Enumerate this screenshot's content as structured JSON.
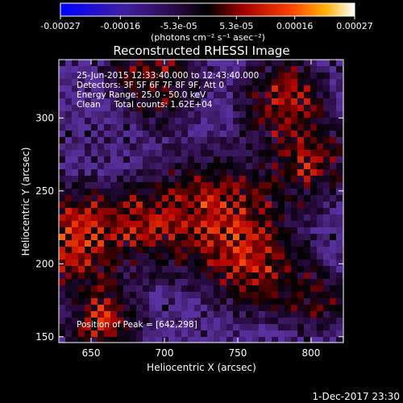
{
  "chart_data": {
    "type": "heatmap",
    "title": "Reconstructed RHESSI Image",
    "xlabel": "Heliocentric X (arcsec)",
    "ylabel": "Heliocentric Y (arcsec)",
    "xlim": [
      628,
      822
    ],
    "ylim": [
      146,
      340
    ],
    "xticks": [
      650,
      700,
      750,
      800
    ],
    "yticks": [
      150,
      200,
      250,
      300
    ],
    "colorbar": {
      "colormap": "blue-purple-red-orange-yellow-white",
      "min": -0.00027,
      "max": 0.00027,
      "tick_labels": [
        "-0.00027",
        "-0.00016",
        "-5.3e-05",
        "5.3e-05",
        "0.00016",
        "0.00027"
      ],
      "tick_values": [
        -0.00027,
        -0.00016,
        -5.3e-05,
        5.3e-05,
        0.00016,
        0.00027
      ],
      "units_label": "(photons cm⁻² s⁻¹ asec⁻²)"
    },
    "annotations": [
      "25-Jun-2015 12:33:40.000 to 12:43:40.000",
      "Detectors: 3F 5F 6F 7F 8F 9F, Att 0",
      "Energy Range: 25.0 - 50.0 keV",
      "Clean     Total counts: 1.62E+04"
    ],
    "peak_label": "Position of Peak = [642,298]",
    "peak_position": [
      642,
      298
    ],
    "grid": false
  },
  "timestamp": "1-Dec-2017 23:30"
}
